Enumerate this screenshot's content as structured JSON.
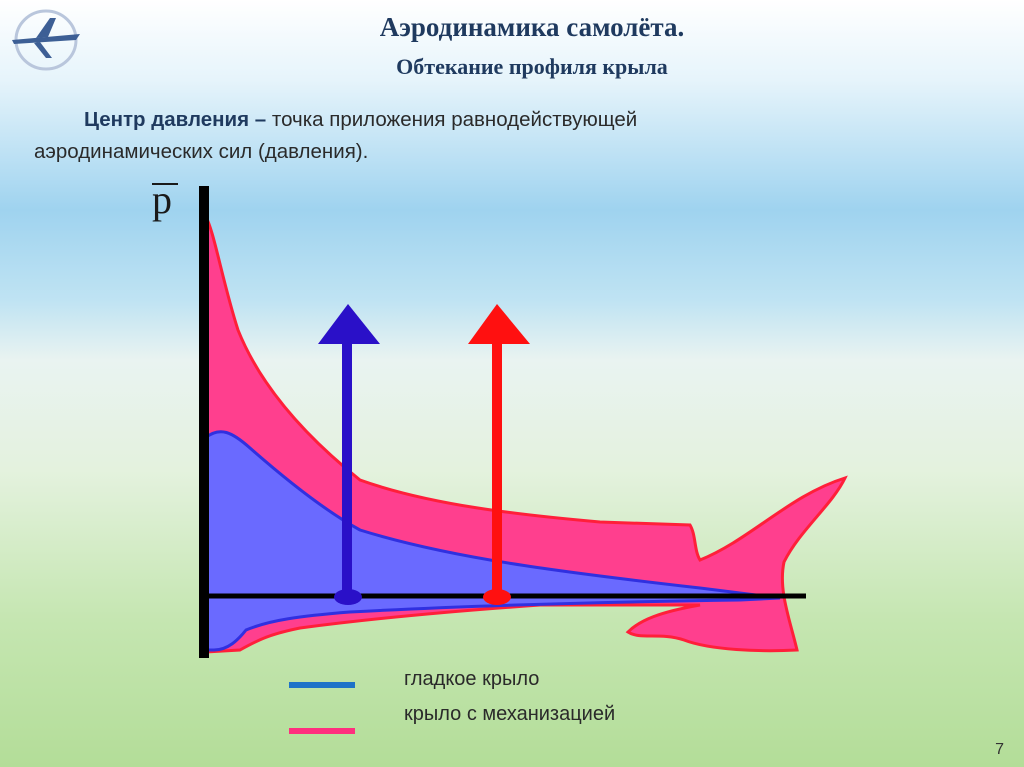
{
  "header": {
    "title": "Аэродинамика  самолёта.",
    "subtitle": "Обтекание профиля крыла"
  },
  "definition": {
    "term": "Центр давления –",
    "text_line1": " точка приложения равнодействующей",
    "text_line2": "аэродинамических сил (давления)."
  },
  "axis": {
    "y_label": "p"
  },
  "legend": [
    {
      "label": "гладкое крыло",
      "color": "#1e73c8"
    },
    {
      "label": "крыло с механизацией",
      "color": "#ff2f7e"
    }
  ],
  "colors": {
    "pink_fill": "#ff3f8e",
    "pink_stroke": "#ff1f3a",
    "blue_fill": "#6a6aff",
    "blue_stroke": "#3030e0",
    "arrow_blue": "#2a10c8",
    "arrow_red": "#ff1010"
  },
  "page_number": "7"
}
